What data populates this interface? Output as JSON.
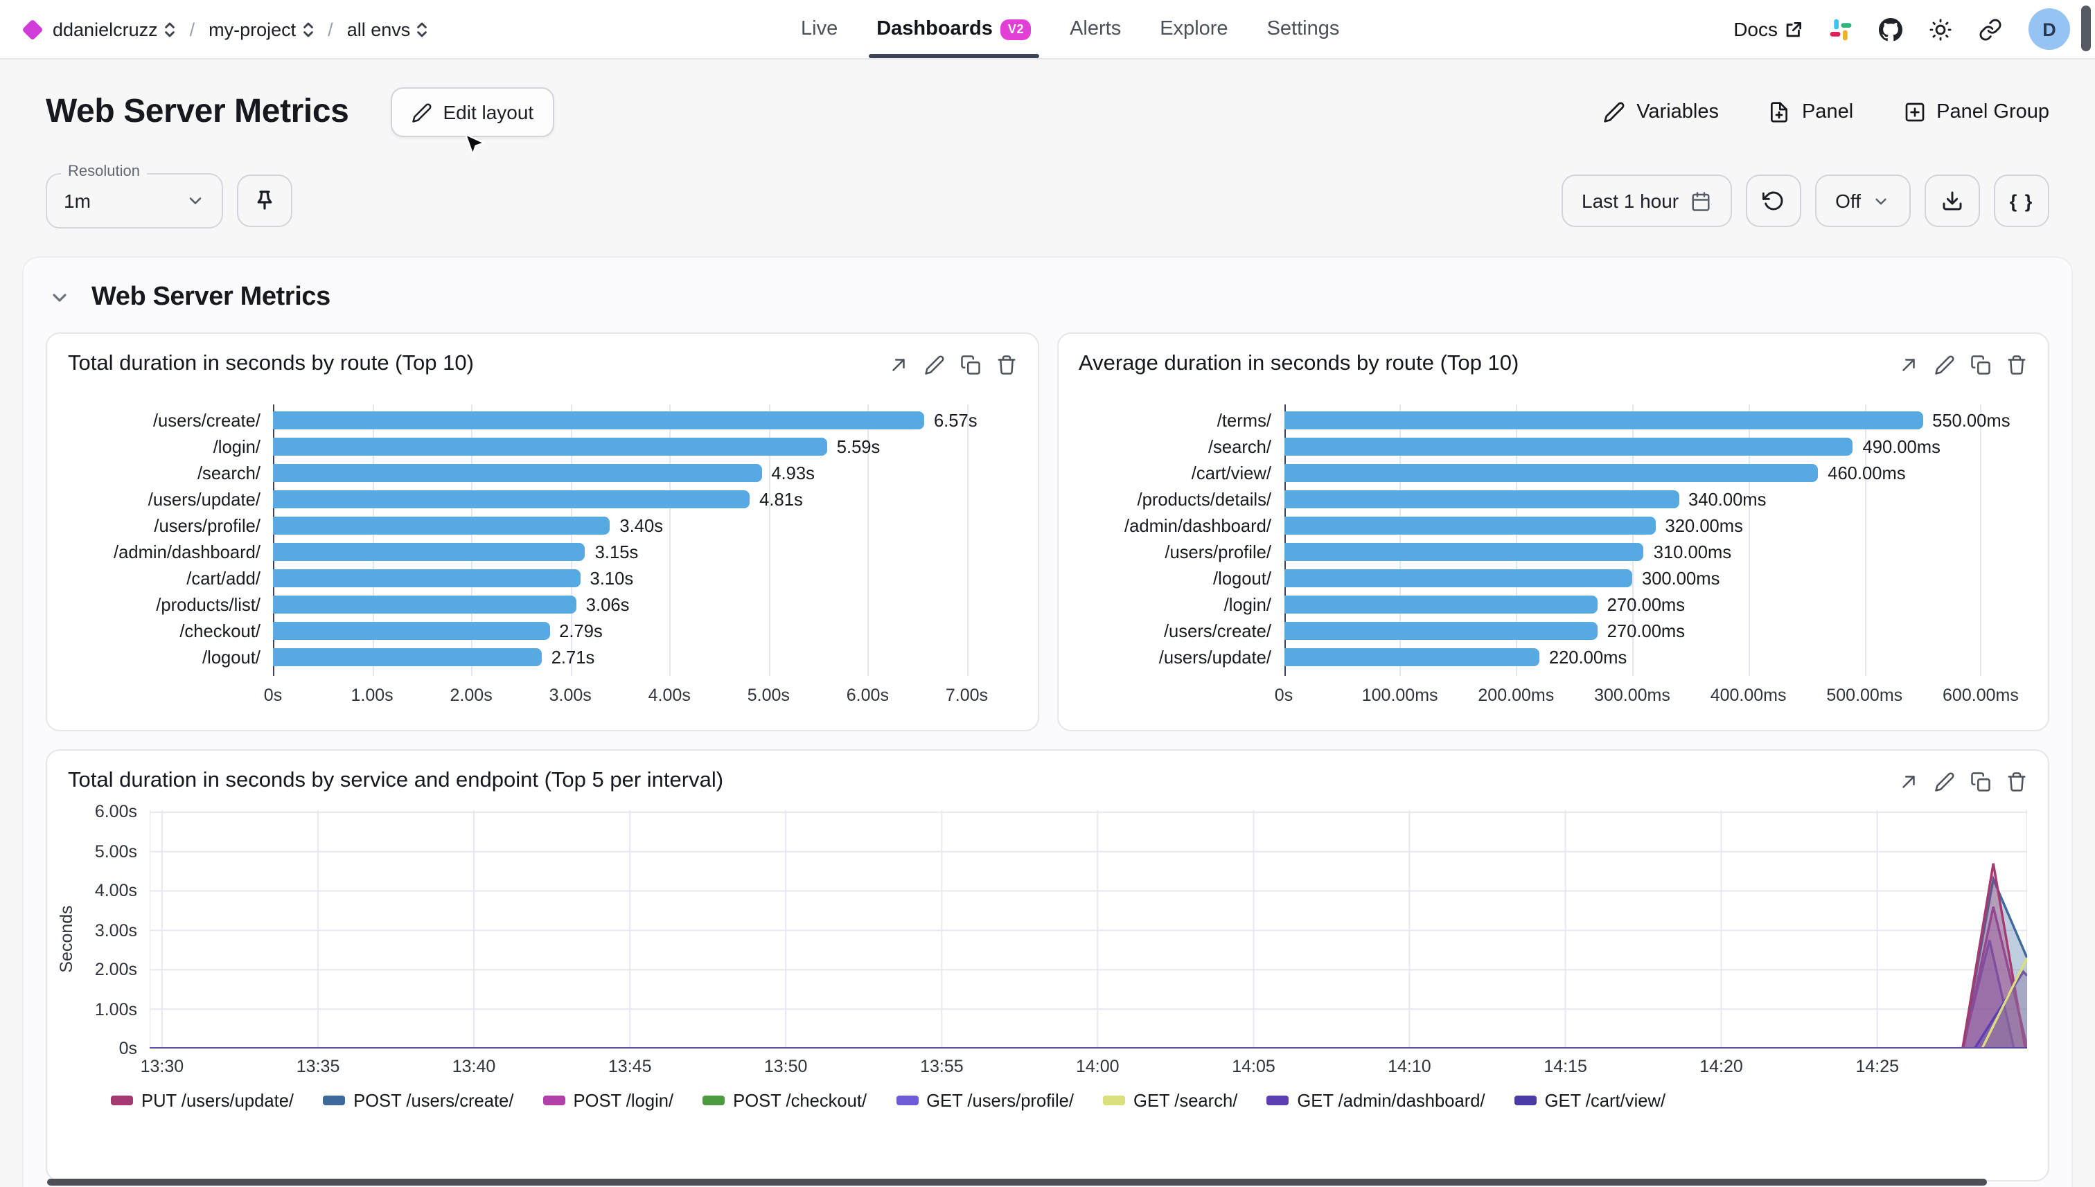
{
  "topnav": {
    "breadcrumb": [
      "ddanielcruzz",
      "my-project",
      "all envs"
    ],
    "tabs": [
      {
        "label": "Live",
        "active": false
      },
      {
        "label": "Dashboards",
        "active": true,
        "badge": "v2"
      },
      {
        "label": "Alerts",
        "active": false
      },
      {
        "label": "Explore",
        "active": false
      },
      {
        "label": "Settings",
        "active": false
      }
    ],
    "docs": "Docs",
    "avatar": "D"
  },
  "page": {
    "title": "Web Server Metrics",
    "edit_layout": "Edit layout",
    "variables": "Variables",
    "panel": "Panel",
    "panel_group": "Panel Group"
  },
  "toolbar": {
    "resolution_label": "Resolution",
    "resolution": "1m",
    "time_range": "Last 1 hour",
    "refresh": "Off",
    "braces": "{ }"
  },
  "section_title": "Web Server Metrics",
  "colors": {
    "bar": "#57a9e1",
    "accent_badge": "#e23fd6",
    "logo": "#d13bd8",
    "grid": "#e6e6f1",
    "axis": "#3d3f63"
  },
  "chart_data": [
    {
      "type": "bar",
      "orientation": "horizontal",
      "title": "Total duration in seconds by route (Top 10)",
      "categories": [
        "/users/create/",
        "/login/",
        "/search/",
        "/users/update/",
        "/users/profile/",
        "/admin/dashboard/",
        "/cart/add/",
        "/products/list/",
        "/checkout/",
        "/logout/"
      ],
      "values": [
        6.57,
        5.59,
        4.93,
        4.81,
        3.4,
        3.15,
        3.1,
        3.06,
        2.79,
        2.71
      ],
      "value_labels": [
        "6.57s",
        "5.59s",
        "4.93s",
        "4.81s",
        "3.40s",
        "3.15s",
        "3.10s",
        "3.06s",
        "2.79s",
        "2.71s"
      ],
      "xmax": 7.5,
      "x_ticks": [
        {
          "v": 0,
          "label": "0s"
        },
        {
          "v": 1,
          "label": "1.00s"
        },
        {
          "v": 2,
          "label": "2.00s"
        },
        {
          "v": 3,
          "label": "3.00s"
        },
        {
          "v": 4,
          "label": "4.00s"
        },
        {
          "v": 5,
          "label": "5.00s"
        },
        {
          "v": 6,
          "label": "6.00s"
        },
        {
          "v": 7,
          "label": "7.00s"
        }
      ]
    },
    {
      "type": "bar",
      "orientation": "horizontal",
      "title": "Average duration in seconds by route (Top 10)",
      "categories": [
        "/terms/",
        "/search/",
        "/cart/view/",
        "/products/details/",
        "/admin/dashboard/",
        "/users/profile/",
        "/logout/",
        "/login/",
        "/users/create/",
        "/users/update/"
      ],
      "values": [
        550,
        490,
        460,
        340,
        320,
        310,
        300,
        270,
        270,
        220
      ],
      "value_labels": [
        "550.00ms",
        "490.00ms",
        "460.00ms",
        "340.00ms",
        "320.00ms",
        "310.00ms",
        "300.00ms",
        "270.00ms",
        "270.00ms",
        "220.00ms"
      ],
      "xmax": 640,
      "x_ticks": [
        {
          "v": 0,
          "label": "0s"
        },
        {
          "v": 100,
          "label": "100.00ms"
        },
        {
          "v": 200,
          "label": "200.00ms"
        },
        {
          "v": 300,
          "label": "300.00ms"
        },
        {
          "v": 400,
          "label": "400.00ms"
        },
        {
          "v": 500,
          "label": "500.00ms"
        },
        {
          "v": 600,
          "label": "600.00ms"
        }
      ]
    },
    {
      "type": "area",
      "title": "Total duration in seconds by service and endpoint (Top 5 per interval)",
      "ylabel": "Seconds",
      "ymax": 6.05,
      "y_ticks": [
        {
          "v": 0,
          "label": "0s"
        },
        {
          "v": 1,
          "label": "1.00s"
        },
        {
          "v": 2,
          "label": "2.00s"
        },
        {
          "v": 3,
          "label": "3.00s"
        },
        {
          "v": 4,
          "label": "4.00s"
        },
        {
          "v": 5,
          "label": "5.00s"
        },
        {
          "v": 6,
          "label": "6.00s"
        }
      ],
      "x_ticks": [
        {
          "f": 0.0066,
          "label": "13:30"
        },
        {
          "f": 0.0897,
          "label": "13:35"
        },
        {
          "f": 0.1727,
          "label": "13:40"
        },
        {
          "f": 0.2558,
          "label": "13:45"
        },
        {
          "f": 0.3388,
          "label": "13:50"
        },
        {
          "f": 0.4219,
          "label": "13:55"
        },
        {
          "f": 0.5049,
          "label": "14:00"
        },
        {
          "f": 0.588,
          "label": "14:05"
        },
        {
          "f": 0.671,
          "label": "14:10"
        },
        {
          "f": 0.7541,
          "label": "14:15"
        },
        {
          "f": 0.8371,
          "label": "14:20"
        },
        {
          "f": 0.9202,
          "label": "14:25"
        }
      ],
      "series": [
        {
          "name": "PUT /users/update/",
          "color": "#a43a71",
          "points": [
            [
              0,
              0
            ],
            [
              0.9656,
              0
            ],
            [
              0.982,
              4.7
            ],
            [
              0.999,
              0
            ]
          ]
        },
        {
          "name": "POST /users/create/",
          "color": "#3e699b",
          "points": [
            [
              0,
              0
            ],
            [
              0.9656,
              0
            ],
            [
              0.982,
              4.3
            ],
            [
              1,
              2.3
            ]
          ]
        },
        {
          "name": "POST /login/",
          "color": "#b240aa",
          "points": [
            [
              0,
              0
            ],
            [
              0.966,
              0
            ],
            [
              0.982,
              3.6
            ],
            [
              1,
              0.05
            ]
          ]
        },
        {
          "name": "POST /checkout/",
          "color": "#4e9a42",
          "points": [
            [
              0,
              0
            ],
            [
              1,
              0
            ]
          ]
        },
        {
          "name": "GET /users/profile/",
          "color": "#6e5bd6",
          "points": [
            [
              0,
              0
            ],
            [
              0.9656,
              0
            ],
            [
              0.98,
              2.75
            ],
            [
              0.993,
              0
            ],
            [
              1,
              0
            ]
          ]
        },
        {
          "name": "GET /search/",
          "color": "#d9e07c",
          "points": [
            [
              0,
              0
            ],
            [
              0.976,
              0
            ],
            [
              1,
              2.3
            ]
          ],
          "fill_opacity": 0.15
        },
        {
          "name": "GET /admin/dashboard/",
          "color": "#5d3fb2",
          "points": [
            [
              0,
              0
            ],
            [
              0.972,
              0
            ],
            [
              0.998,
              1.95
            ],
            [
              1,
              1.85
            ]
          ]
        },
        {
          "name": "GET /cart/view/",
          "color": "#4a3ba6",
          "points": [
            [
              0,
              0
            ],
            [
              1,
              0
            ]
          ]
        }
      ],
      "draw_order": [
        3,
        4,
        2,
        1,
        0,
        6,
        5,
        7
      ]
    }
  ]
}
